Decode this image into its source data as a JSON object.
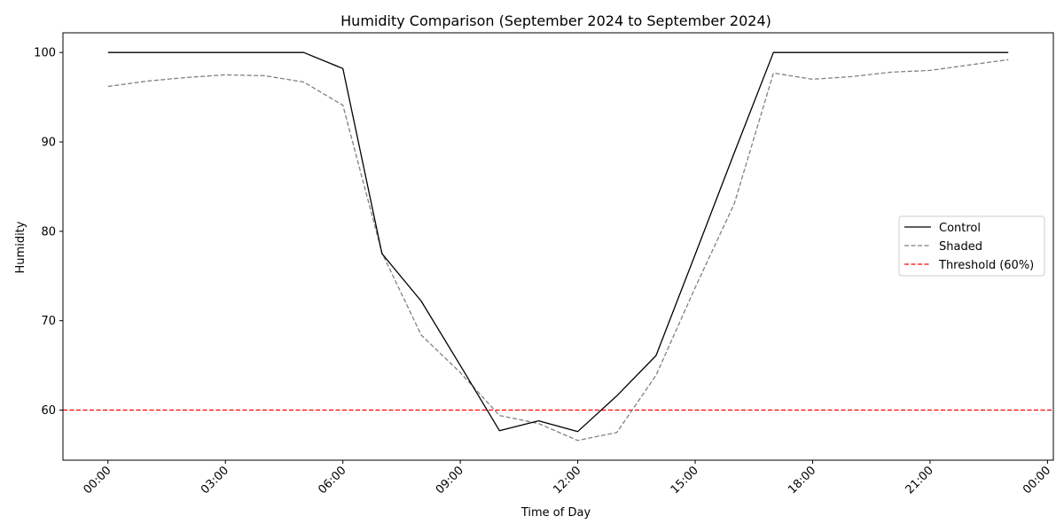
{
  "chart_data": {
    "type": "line",
    "title": "Humidity Comparison (September 2024 to September 2024)",
    "xlabel": "Time of Day",
    "ylabel": "Humidity",
    "x_hours": [
      0,
      1,
      2,
      3,
      4,
      5,
      6,
      7,
      8,
      9,
      10,
      11,
      12,
      13,
      14,
      15,
      16,
      17,
      18,
      19,
      20,
      21,
      22,
      23
    ],
    "x_ticks": [
      "00:00",
      "03:00",
      "06:00",
      "09:00",
      "12:00",
      "15:00",
      "18:00",
      "21:00",
      "00:00"
    ],
    "x_tick_hours": [
      0,
      3,
      6,
      9,
      12,
      15,
      18,
      21,
      24
    ],
    "xlim": [
      -1.15,
      24.15
    ],
    "ylim": [
      54.4,
      102.2
    ],
    "y_ticks": [
      60,
      70,
      80,
      90,
      100
    ],
    "series": [
      {
        "name": "Control",
        "color": "#000000",
        "style": "solid",
        "values": [
          100.0,
          100.0,
          100.0,
          100.0,
          100.0,
          100.0,
          98.2,
          77.5,
          72.2,
          65.0,
          57.7,
          58.8,
          57.6,
          61.6,
          66.1,
          77.4,
          88.8,
          100.0,
          100.0,
          100.0,
          100.0,
          100.0,
          100.0,
          100.0
        ]
      },
      {
        "name": "Shaded",
        "color": "#808080",
        "style": "dashed",
        "values": [
          96.2,
          96.8,
          97.2,
          97.5,
          97.4,
          96.7,
          94.1,
          77.6,
          68.4,
          64.2,
          59.4,
          58.5,
          56.6,
          57.5,
          63.9,
          73.7,
          83.1,
          97.7,
          97.0,
          97.3,
          97.8,
          98.0,
          98.6,
          99.2
        ]
      }
    ],
    "threshold": {
      "name": "Threshold (60%)",
      "value": 60,
      "color": "#ff0000",
      "style": "dashed"
    },
    "legend_position": "center-right",
    "grid": false
  }
}
